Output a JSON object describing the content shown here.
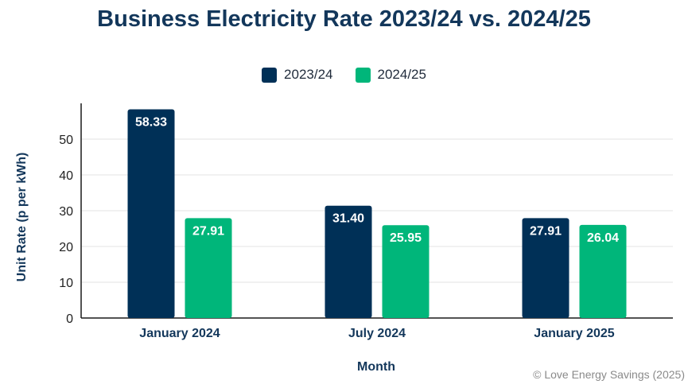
{
  "chart_data": {
    "type": "bar",
    "title": "Business Electricity Rate 2023/24 vs. 2024/25",
    "xlabel": "Month",
    "ylabel": "Unit Rate (p per kWh)",
    "categories": [
      "January 2024",
      "July 2024",
      "January 2025"
    ],
    "series": [
      {
        "name": "2023/24",
        "color": "#003057",
        "values": [
          58.33,
          31.4,
          27.91
        ]
      },
      {
        "name": "2024/25",
        "color": "#00b67a",
        "values": [
          27.91,
          25.95,
          26.04
        ]
      }
    ],
    "ylim": [
      0,
      60
    ],
    "yticks": [
      0,
      10,
      20,
      30,
      40,
      50
    ],
    "grid": true,
    "legend_position": "top-center",
    "value_labels": true
  },
  "credit": "© Love Energy Savings (2025)"
}
